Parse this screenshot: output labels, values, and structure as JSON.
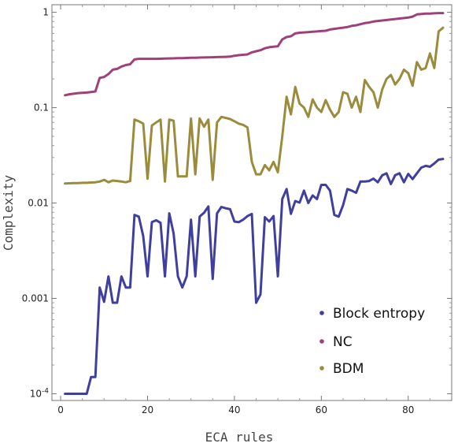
{
  "chart_data": {
    "type": "line",
    "xlabel": "ECA rules",
    "ylabel": "Complexity",
    "xlim": [
      -2,
      90
    ],
    "ylim": [
      8.5e-05,
      1.2
    ],
    "yscale": "log",
    "grid": false,
    "legend_position": "bottom-right",
    "x_ticks": [
      {
        "value": 0,
        "label": "0"
      },
      {
        "value": 20,
        "label": "20"
      },
      {
        "value": 40,
        "label": "40"
      },
      {
        "value": 60,
        "label": "60"
      },
      {
        "value": 80,
        "label": "80"
      }
    ],
    "y_ticks": [
      {
        "value": 0.0001,
        "label": "10",
        "sup": "-4"
      },
      {
        "value": 0.001,
        "label": "0.001",
        "sup": ""
      },
      {
        "value": 0.01,
        "label": "0.01",
        "sup": ""
      },
      {
        "value": 0.1,
        "label": "0.1",
        "sup": ""
      },
      {
        "value": 1,
        "label": "1",
        "sup": ""
      }
    ],
    "series": [
      {
        "name": "Block entropy",
        "color": "#3f3f9f",
        "x": [
          1,
          2,
          3,
          4,
          5,
          6,
          7,
          8,
          9,
          10,
          11,
          12,
          13,
          14,
          15,
          16,
          17,
          18,
          19,
          20,
          21,
          22,
          23,
          24,
          25,
          26,
          27,
          28,
          29,
          30,
          31,
          32,
          33,
          34,
          35,
          36,
          37,
          38,
          39,
          40,
          41,
          42,
          43,
          44,
          45,
          46,
          47,
          48,
          49,
          50,
          51,
          52,
          53,
          54,
          55,
          56,
          57,
          58,
          59,
          60,
          61,
          62,
          63,
          64,
          65,
          66,
          67,
          68,
          69,
          70,
          71,
          72,
          73,
          74,
          75,
          76,
          77,
          78,
          79,
          80,
          81,
          82,
          83,
          84,
          85,
          86,
          87,
          88
        ],
        "values": [
          0.0001,
          0.0001,
          0.0001,
          0.0001,
          0.0001,
          0.0001,
          0.00015,
          0.00015,
          0.0013,
          0.00092,
          0.0017,
          0.0009,
          0.0009,
          0.0017,
          0.0013,
          0.0013,
          0.0075,
          0.0072,
          0.0045,
          0.0017,
          0.0063,
          0.0066,
          0.0062,
          0.0017,
          0.0078,
          0.0048,
          0.0017,
          0.0013,
          0.0017,
          0.0067,
          0.0017,
          0.0072,
          0.0079,
          0.0092,
          0.0016,
          0.0078,
          0.0091,
          0.0088,
          0.0086,
          0.0064,
          0.0063,
          0.0067,
          0.0073,
          0.0077,
          0.0009,
          0.0011,
          0.0071,
          0.0064,
          0.0073,
          0.0017,
          0.011,
          0.014,
          0.0077,
          0.0105,
          0.0101,
          0.0135,
          0.01,
          0.012,
          0.011,
          0.0155,
          0.0155,
          0.0135,
          0.0075,
          0.0072,
          0.0095,
          0.014,
          0.0135,
          0.0128,
          0.0168,
          0.0168,
          0.017,
          0.018,
          0.0165,
          0.0195,
          0.0205,
          0.0158,
          0.0196,
          0.0205,
          0.0165,
          0.0202,
          0.0178,
          0.0205,
          0.0235,
          0.0245,
          0.024,
          0.026,
          0.0285,
          0.029
        ]
      },
      {
        "name": "NC",
        "color": "#a0407a",
        "x": [
          1,
          2,
          3,
          4,
          5,
          6,
          7,
          8,
          9,
          10,
          11,
          12,
          13,
          14,
          15,
          16,
          17,
          18,
          19,
          20,
          21,
          22,
          23,
          24,
          25,
          26,
          27,
          28,
          29,
          30,
          31,
          32,
          33,
          34,
          35,
          36,
          37,
          38,
          39,
          40,
          41,
          42,
          43,
          44,
          45,
          46,
          47,
          48,
          49,
          50,
          51,
          52,
          53,
          54,
          55,
          56,
          57,
          58,
          59,
          60,
          61,
          62,
          63,
          64,
          65,
          66,
          67,
          68,
          69,
          70,
          71,
          72,
          73,
          74,
          75,
          76,
          77,
          78,
          79,
          80,
          81,
          82,
          83,
          84,
          85,
          86,
          87,
          88
        ],
        "values": [
          0.135,
          0.138,
          0.14,
          0.142,
          0.143,
          0.144,
          0.146,
          0.148,
          0.205,
          0.21,
          0.225,
          0.25,
          0.255,
          0.27,
          0.28,
          0.285,
          0.32,
          0.325,
          0.325,
          0.325,
          0.325,
          0.325,
          0.326,
          0.327,
          0.328,
          0.329,
          0.33,
          0.331,
          0.332,
          0.333,
          0.334,
          0.335,
          0.336,
          0.337,
          0.338,
          0.339,
          0.34,
          0.341,
          0.343,
          0.35,
          0.355,
          0.358,
          0.362,
          0.38,
          0.39,
          0.4,
          0.42,
          0.43,
          0.435,
          0.44,
          0.52,
          0.55,
          0.56,
          0.6,
          0.61,
          0.615,
          0.62,
          0.625,
          0.63,
          0.635,
          0.64,
          0.66,
          0.67,
          0.68,
          0.69,
          0.7,
          0.72,
          0.73,
          0.75,
          0.77,
          0.78,
          0.8,
          0.81,
          0.82,
          0.83,
          0.84,
          0.85,
          0.86,
          0.87,
          0.88,
          0.9,
          0.95,
          0.96,
          0.97,
          0.97,
          0.975,
          0.98,
          0.98
        ]
      },
      {
        "name": "BDM",
        "color": "#9a8c3c",
        "x": [
          1,
          2,
          3,
          4,
          5,
          6,
          7,
          8,
          9,
          10,
          11,
          12,
          13,
          14,
          15,
          16,
          17,
          18,
          19,
          20,
          21,
          22,
          23,
          24,
          25,
          26,
          27,
          28,
          29,
          30,
          31,
          32,
          33,
          34,
          35,
          36,
          37,
          38,
          39,
          40,
          41,
          42,
          43,
          44,
          45,
          46,
          47,
          48,
          49,
          50,
          51,
          52,
          53,
          54,
          55,
          56,
          57,
          58,
          59,
          60,
          61,
          62,
          63,
          64,
          65,
          66,
          67,
          68,
          69,
          70,
          71,
          72,
          73,
          74,
          75,
          76,
          77,
          78,
          79,
          80,
          81,
          82,
          83,
          84,
          85,
          86,
          87,
          88
        ],
        "values": [
          0.016,
          0.0161,
          0.0162,
          0.0162,
          0.0163,
          0.0163,
          0.0164,
          0.0165,
          0.0168,
          0.0175,
          0.0165,
          0.0172,
          0.017,
          0.0168,
          0.0165,
          0.017,
          0.075,
          0.072,
          0.068,
          0.018,
          0.065,
          0.07,
          0.075,
          0.0168,
          0.075,
          0.073,
          0.019,
          0.019,
          0.019,
          0.077,
          0.02,
          0.077,
          0.063,
          0.075,
          0.0175,
          0.07,
          0.08,
          0.078,
          0.076,
          0.072,
          0.068,
          0.066,
          0.062,
          0.027,
          0.02,
          0.02,
          0.025,
          0.022,
          0.027,
          0.021,
          0.05,
          0.13,
          0.085,
          0.165,
          0.11,
          0.1,
          0.08,
          0.122,
          0.1,
          0.09,
          0.12,
          0.095,
          0.08,
          0.09,
          0.145,
          0.14,
          0.1,
          0.13,
          0.09,
          0.195,
          0.165,
          0.145,
          0.1,
          0.155,
          0.2,
          0.22,
          0.175,
          0.2,
          0.25,
          0.23,
          0.17,
          0.3,
          0.25,
          0.26,
          0.37,
          0.26,
          0.63,
          0.69
        ]
      }
    ]
  }
}
